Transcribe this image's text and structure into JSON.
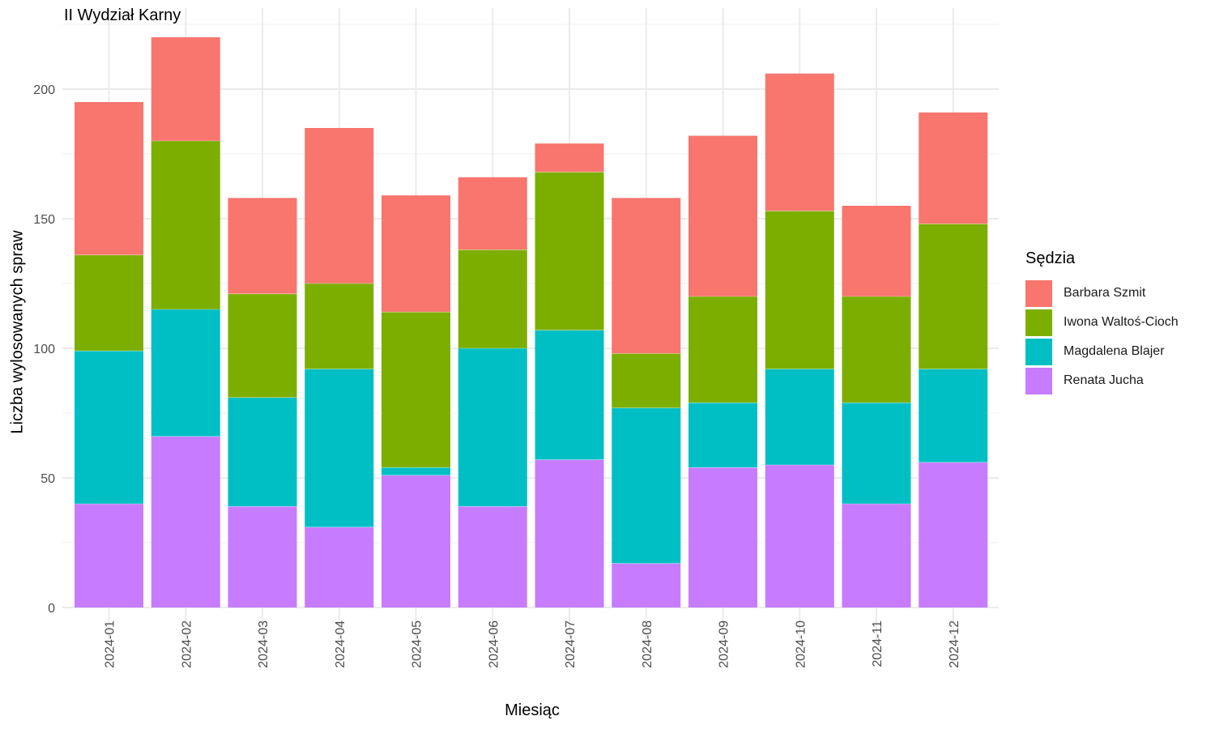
{
  "chart_data": {
    "type": "bar",
    "stacked": true,
    "title": "II Wydział Karny",
    "xlabel": "Miesiąc",
    "ylabel": "Liczba wylosowanych spraw",
    "legend_title": "Sędzia",
    "legend_position": "right",
    "grid": true,
    "ylim": [
      0,
      230
    ],
    "yticks": [
      0,
      50,
      100,
      150,
      200
    ],
    "categories": [
      "2024-01",
      "2024-02",
      "2024-03",
      "2024-04",
      "2024-05",
      "2024-06",
      "2024-07",
      "2024-08",
      "2024-09",
      "2024-10",
      "2024-11",
      "2024-12"
    ],
    "series": [
      {
        "name": "Barbara Szmit",
        "color": "#F8766D",
        "values": [
          59,
          40,
          37,
          60,
          45,
          28,
          11,
          60,
          62,
          53,
          35,
          43
        ]
      },
      {
        "name": "Iwona Waltoś-Cioch",
        "color": "#7CAE00",
        "values": [
          37,
          65,
          40,
          33,
          60,
          38,
          61,
          21,
          41,
          61,
          41,
          56
        ]
      },
      {
        "name": "Magdalena Blajer",
        "color": "#00BFC4",
        "values": [
          59,
          49,
          42,
          61,
          3,
          61,
          50,
          60,
          25,
          37,
          39,
          36
        ]
      },
      {
        "name": "Renata Jucha",
        "color": "#C77CFF",
        "values": [
          40,
          66,
          39,
          31,
          51,
          39,
          57,
          17,
          54,
          55,
          40,
          56
        ]
      }
    ]
  }
}
